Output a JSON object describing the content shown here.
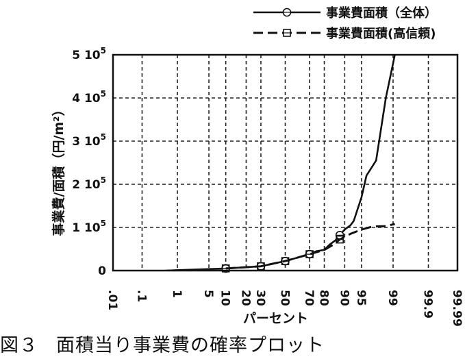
{
  "chart_data": {
    "type": "line",
    "xlabel": "パーセント",
    "ylabel": "事業費/面積（円/m²）",
    "x_ticks": [
      ".01",
      ".1",
      "1",
      "5",
      "10",
      "20",
      "30",
      "50",
      "70",
      "80",
      "90",
      "95",
      "99",
      "99.9",
      "99.99"
    ],
    "y_ticks": [
      {
        "value": 0,
        "label": "0"
      },
      {
        "value": 100000,
        "label": "1 10⁵"
      },
      {
        "value": 200000,
        "label": "2 10⁵"
      },
      {
        "value": 300000,
        "label": "3 10⁵"
      },
      {
        "value": 400000,
        "label": "4 10⁵"
      },
      {
        "value": 500000,
        "label": "5 10⁵"
      }
    ],
    "ylim": [
      0,
      500000
    ],
    "grid": true,
    "legend_position": "top-right",
    "series": [
      {
        "name": "事業費面積（全体）",
        "line": "solid",
        "marker": "circle",
        "points": [
          {
            "x": 0.5,
            "y": 0
          },
          {
            "x": 10,
            "y": 5000
          },
          {
            "x": 30,
            "y": 10000
          },
          {
            "x": 50,
            "y": 22000
          },
          {
            "x": 70,
            "y": 38000
          },
          {
            "x": 75,
            "y": 45000
          },
          {
            "x": 80,
            "y": 48000
          },
          {
            "x": 83,
            "y": 60000
          },
          {
            "x": 86,
            "y": 70000
          },
          {
            "x": 88,
            "y": 82000
          },
          {
            "x": 90,
            "y": 95000
          },
          {
            "x": 92,
            "y": 105000
          },
          {
            "x": 93,
            "y": 115000
          },
          {
            "x": 95,
            "y": 170000
          },
          {
            "x": 96,
            "y": 220000
          },
          {
            "x": 97.5,
            "y": 255000
          },
          {
            "x": 98.5,
            "y": 400000
          },
          {
            "x": 99.1,
            "y": 500000
          }
        ],
        "markers": [
          {
            "x": 10,
            "y": 5000
          },
          {
            "x": 30,
            "y": 10000
          },
          {
            "x": 50,
            "y": 22000
          },
          {
            "x": 70,
            "y": 38000
          },
          {
            "x": 88,
            "y": 82000
          }
        ]
      },
      {
        "name": "事業費面積(高信頼)",
        "line": "dashed",
        "marker": "square",
        "points": [
          {
            "x": 10,
            "y": 5000
          },
          {
            "x": 30,
            "y": 10000
          },
          {
            "x": 50,
            "y": 22000
          },
          {
            "x": 70,
            "y": 38000
          },
          {
            "x": 80,
            "y": 48000
          },
          {
            "x": 85,
            "y": 60000
          },
          {
            "x": 88,
            "y": 72000
          },
          {
            "x": 92,
            "y": 85000
          },
          {
            "x": 95,
            "y": 95000
          },
          {
            "x": 97,
            "y": 102000
          },
          {
            "x": 98.5,
            "y": 103000
          },
          {
            "x": 99.1,
            "y": 108000
          }
        ],
        "markers": [
          {
            "x": 10,
            "y": 5000
          },
          {
            "x": 30,
            "y": 10000
          },
          {
            "x": 50,
            "y": 22000
          },
          {
            "x": 70,
            "y": 38000
          },
          {
            "x": 88,
            "y": 72000
          }
        ]
      }
    ]
  },
  "caption": {
    "label": "図３",
    "text": "面積当り事業費の確率プロット"
  }
}
